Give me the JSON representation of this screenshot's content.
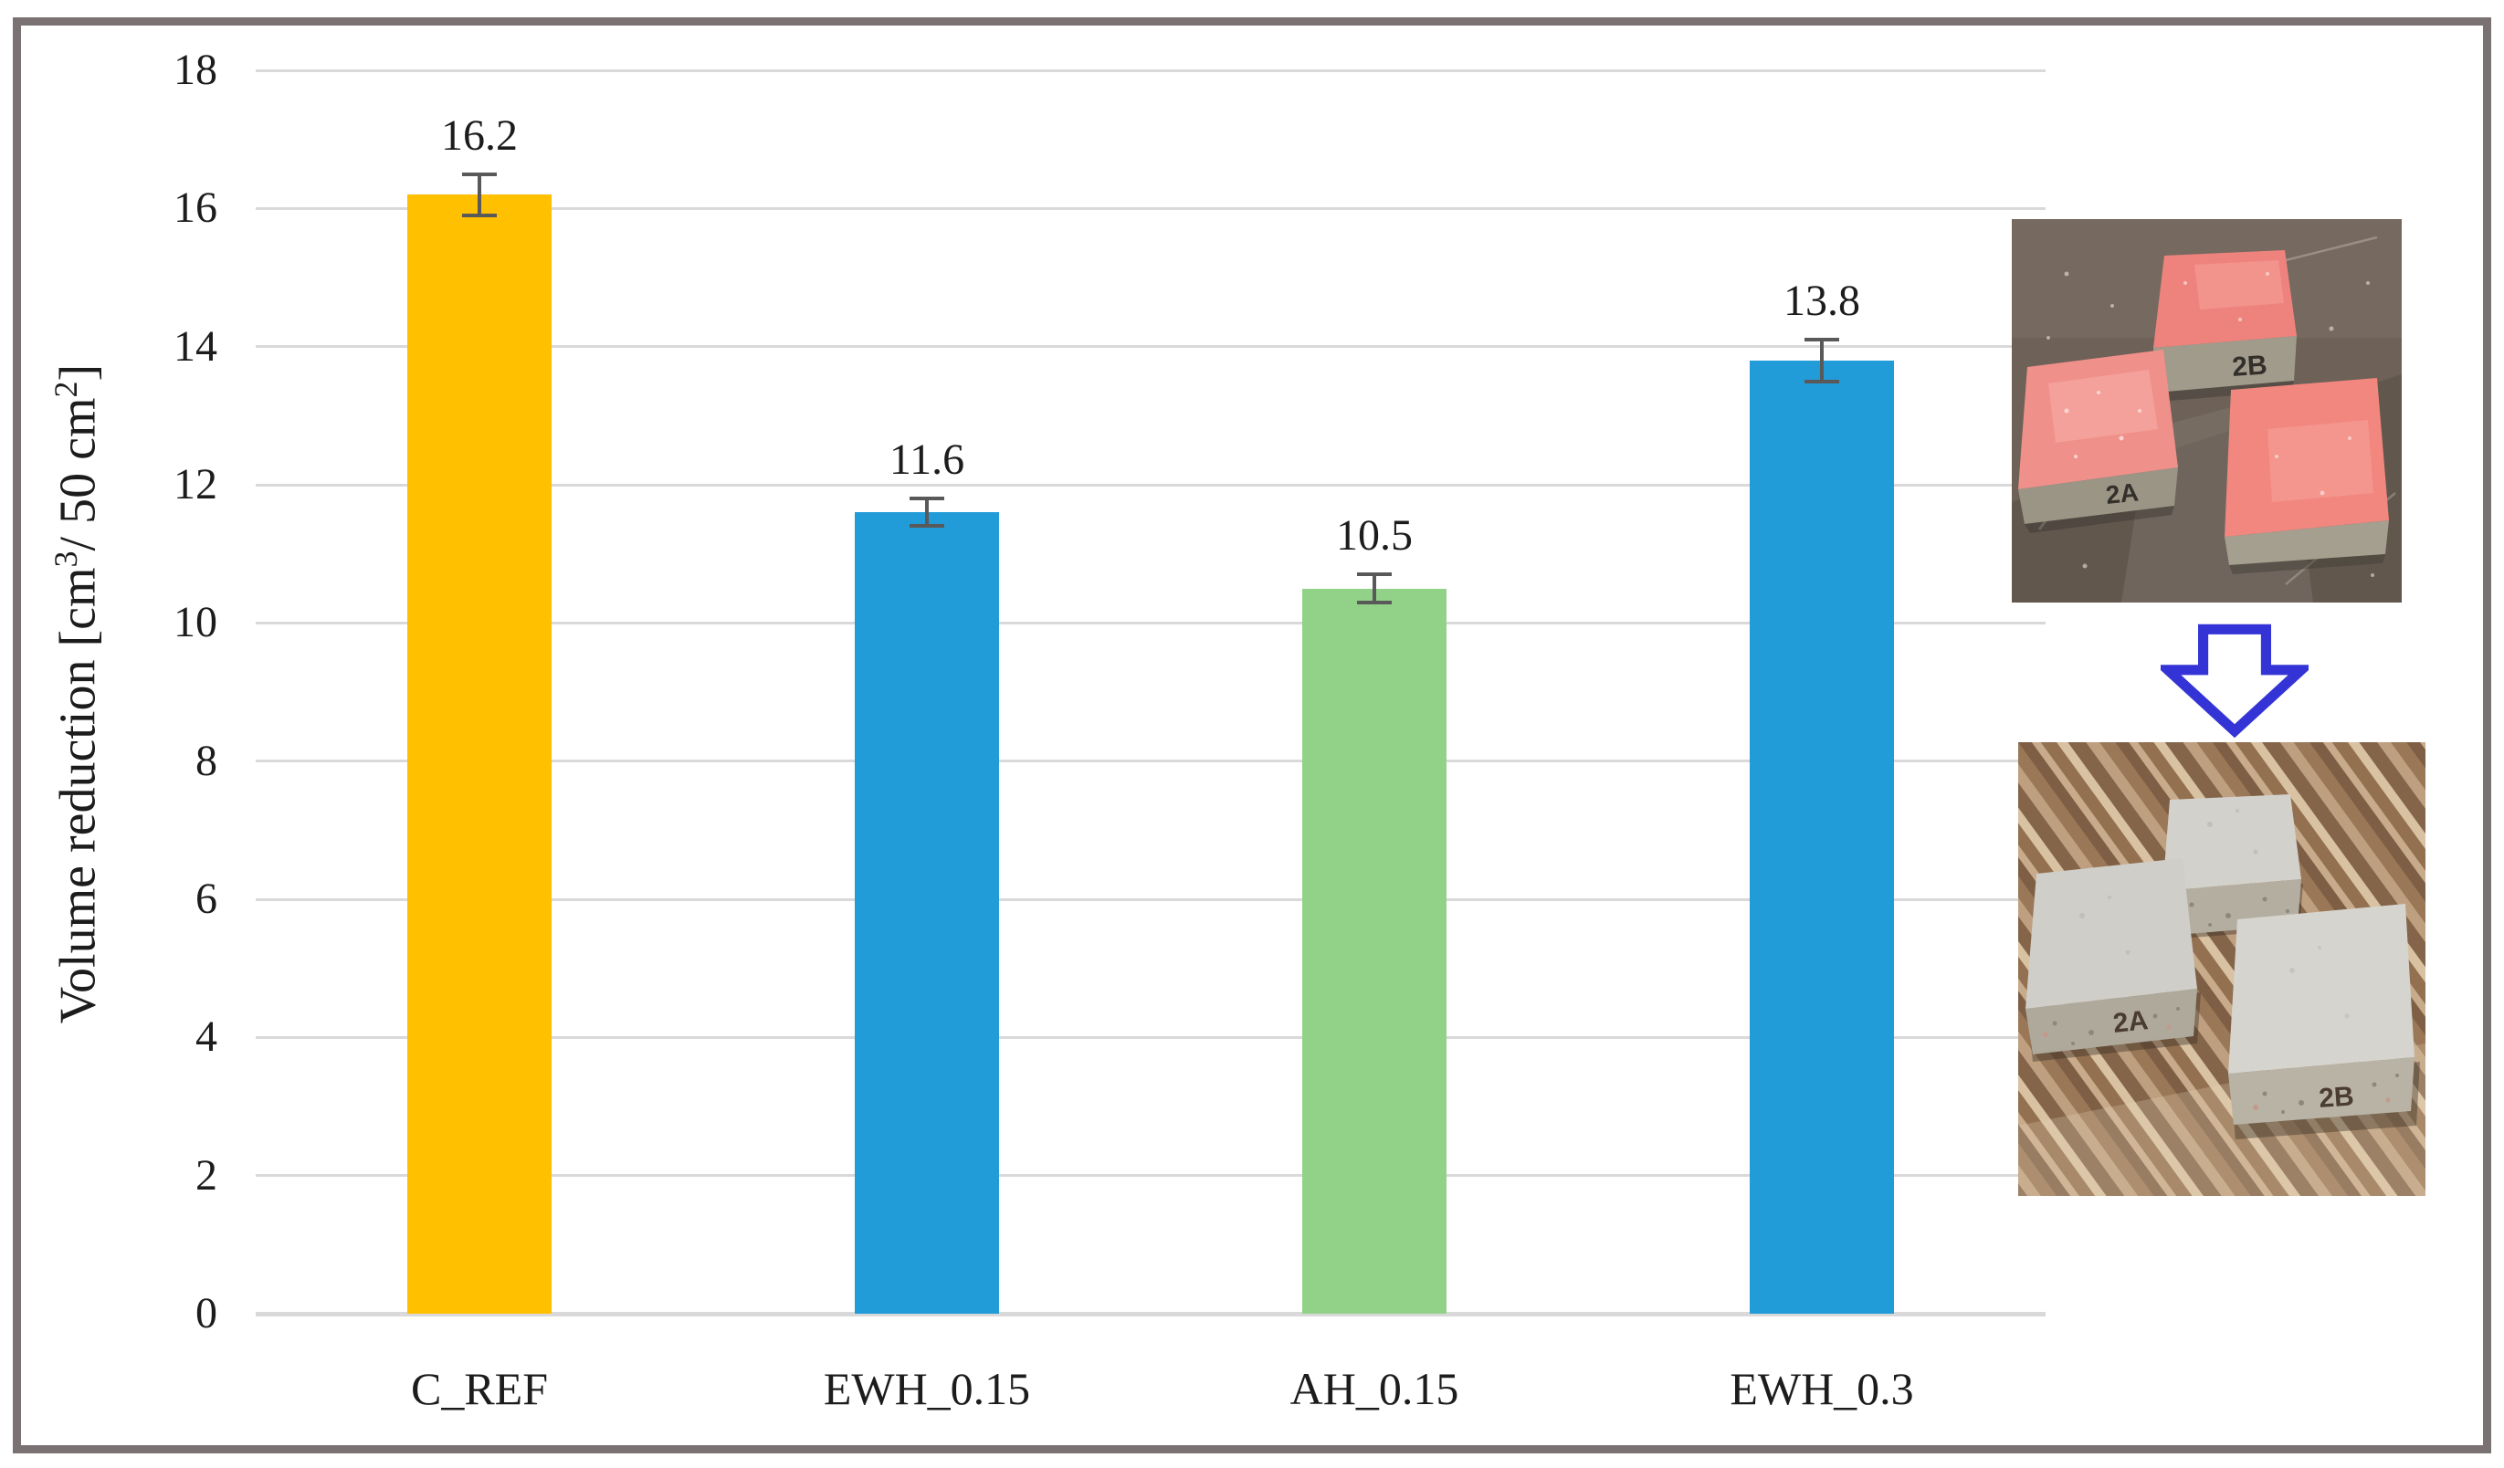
{
  "chart_data": {
    "type": "bar",
    "categories": [
      "C_REF",
      "EWH_0.15",
      "AH_0.15",
      "EWH_0.3"
    ],
    "values": [
      16.2,
      11.6,
      10.5,
      13.8
    ],
    "errors": [
      0.3,
      0.2,
      0.2,
      0.3
    ],
    "data_labels": [
      "16.2",
      "11.6",
      "10.5",
      "13.8"
    ],
    "colors": [
      "#FFC000",
      "#219CD8",
      "#92D288",
      "#219CD8"
    ],
    "title": "",
    "xlabel": "",
    "ylabel": "Volume reduction [cm³/ 50 cm²]",
    "ylabel_parts": {
      "pre": "Volume reduction [cm",
      "sup1": "3",
      "mid": "/ 50 cm",
      "sup2": "2",
      "post": "]"
    },
    "ylim": [
      0,
      18
    ],
    "ytick_step": 2,
    "ytick_labels": [
      "0",
      "2",
      "4",
      "6",
      "8",
      "10",
      "12",
      "14",
      "16",
      "18"
    ],
    "grid": true,
    "legend": false
  },
  "figure": {
    "frame_border_color": "#7A7272",
    "gridline_color": "#D9D9D9",
    "errorbar_color": "#595959",
    "text_color": "#1C1C1C",
    "arrow_color": "#3434D6",
    "photos": {
      "before": {
        "block_labels": [
          "2A",
          "2B"
        ]
      },
      "after": {
        "block_labels": [
          "2A",
          "2B"
        ]
      }
    }
  }
}
